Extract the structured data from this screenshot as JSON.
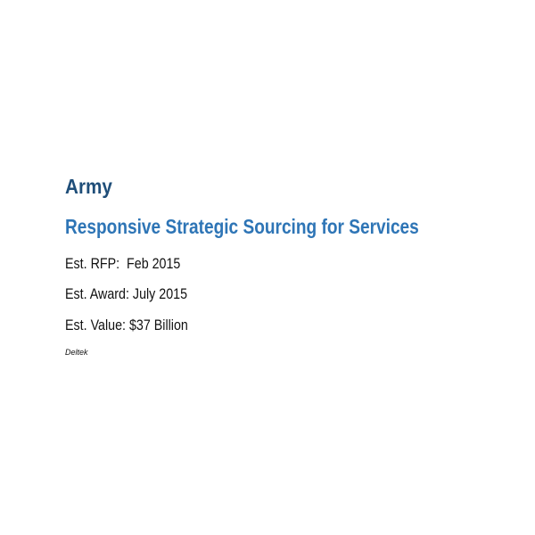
{
  "document": {
    "organization": "Army",
    "title": "Responsive Strategic Sourcing for Services",
    "details": [
      "Est. RFP:  Feb 2015",
      "Est. Award: July 2015",
      "Est. Value: $37 Billion"
    ],
    "source": "Deltek",
    "colors": {
      "organization": "#1f4e79",
      "title": "#2e75b6"
    }
  }
}
